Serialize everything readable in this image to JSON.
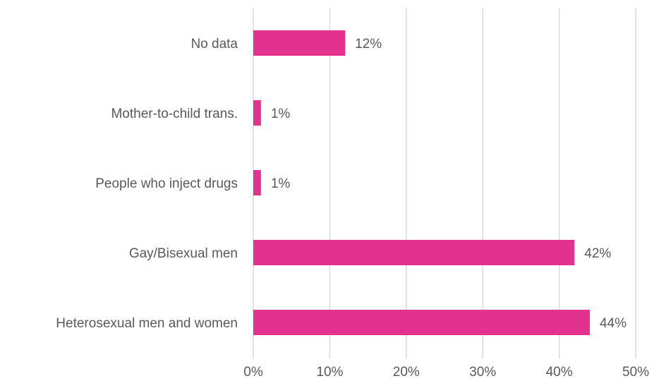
{
  "chart_data": {
    "type": "bar",
    "orientation": "horizontal",
    "categories": [
      "No data",
      "Mother-to-child trans.",
      "People who inject drugs",
      "Gay/Bisexual men",
      "Heterosexual men and women"
    ],
    "values": [
      12,
      1,
      1,
      42,
      44
    ],
    "value_unit": "%",
    "data_labels": [
      "12%",
      "1%",
      "1%",
      "42%",
      "44%"
    ],
    "xlim": [
      0,
      50
    ],
    "x_ticks": [
      0,
      10,
      20,
      30,
      40,
      50
    ],
    "x_tick_labels": [
      "0%",
      "10%",
      "20%",
      "30%",
      "40%",
      "50%"
    ],
    "title": "",
    "xlabel": "",
    "ylabel": "",
    "grid": "vertical",
    "legend": "none",
    "bar_color": "#e3318f",
    "grid_color": "#d9d9d9",
    "text_color": "#595959"
  }
}
